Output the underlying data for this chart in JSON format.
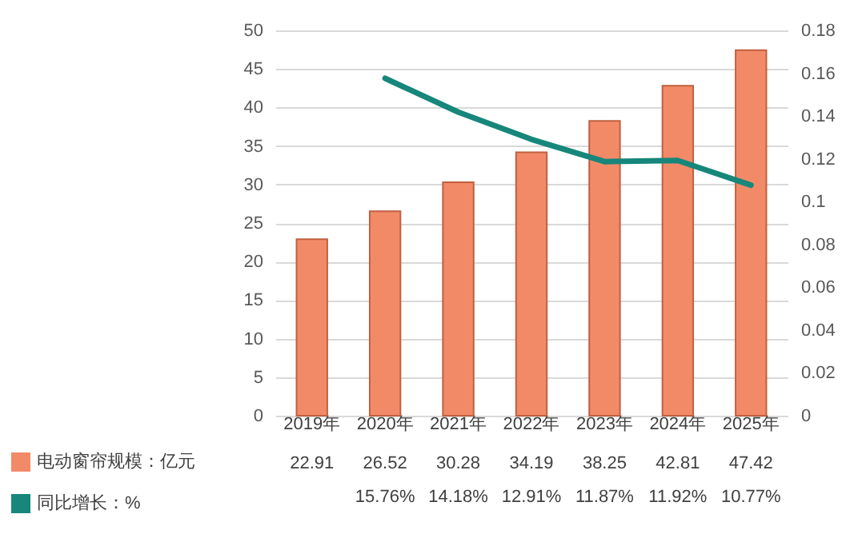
{
  "chart_data": {
    "type": "bar",
    "categories": [
      "2019年",
      "2020年",
      "2021年",
      "2022年",
      "2023年",
      "2024年",
      "2025年"
    ],
    "series": [
      {
        "name": "电动窗帘规模：亿元",
        "color": "#f28a68",
        "values": [
          22.91,
          26.52,
          30.28,
          34.19,
          38.25,
          42.81,
          47.42
        ],
        "value_labels": [
          "22.91",
          "26.52",
          "30.28",
          "34.19",
          "38.25",
          "42.81",
          "47.42"
        ]
      },
      {
        "name": "同比增长：%",
        "type": "line",
        "axis": "y2",
        "color": "#16877a",
        "values": [
          null,
          0.1576,
          0.1418,
          0.1291,
          0.1187,
          0.1192,
          0.1077
        ],
        "value_labels": [
          null,
          "15.76%",
          "14.18%",
          "12.91%",
          "11.87%",
          "11.92%",
          "10.77%"
        ]
      }
    ],
    "ylim": [
      0,
      50
    ],
    "yticks": [
      0,
      5,
      10,
      15,
      20,
      25,
      30,
      35,
      40,
      45,
      50
    ],
    "y2lim": [
      0,
      0.18
    ],
    "y2ticks": [
      0,
      0.02,
      0.04,
      0.06,
      0.08,
      0.1,
      0.12,
      0.14,
      0.16,
      0.18
    ],
    "grid": "y",
    "legend": "bottom left"
  }
}
